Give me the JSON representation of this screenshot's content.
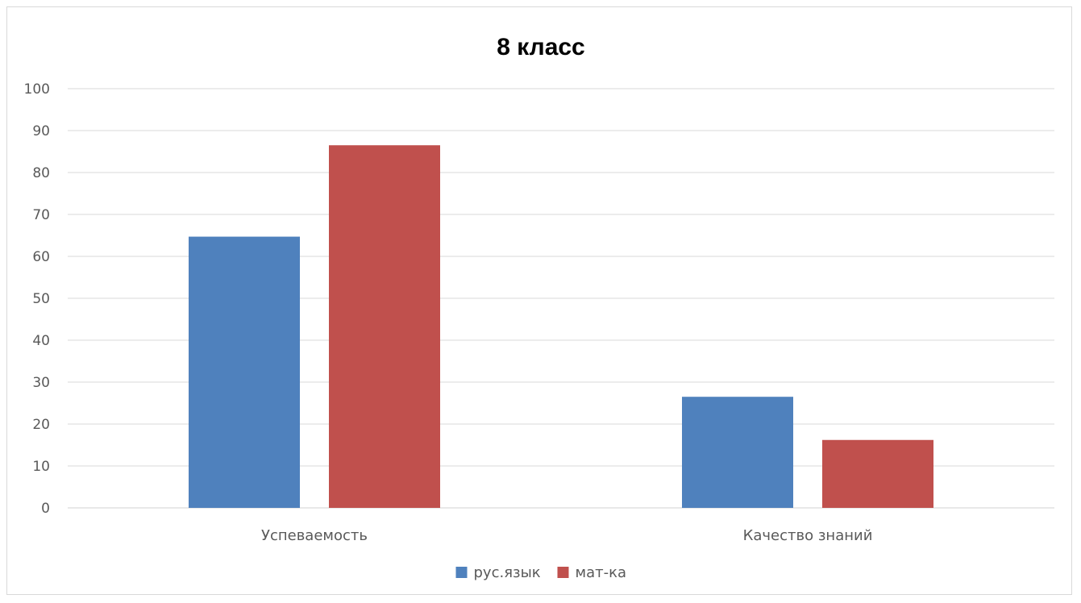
{
  "chart_data": {
    "type": "bar",
    "title": "8 класс",
    "categories": [
      "Успеваемость",
      "Качество знаний"
    ],
    "series": [
      {
        "name": "рус.язык",
        "values": [
          64.7,
          26.5
        ],
        "color": "#4f81bd"
      },
      {
        "name": "мат-ка",
        "values": [
          86.5,
          16.2
        ],
        "color": "#c0504d"
      }
    ],
    "ylim": [
      0,
      100
    ],
    "yticks": [
      "0",
      "10",
      "20",
      "30",
      "40",
      "50",
      "60",
      "70",
      "80",
      "90",
      "100"
    ],
    "grid": true,
    "legend": "bottom",
    "xlabel": "",
    "ylabel": ""
  }
}
